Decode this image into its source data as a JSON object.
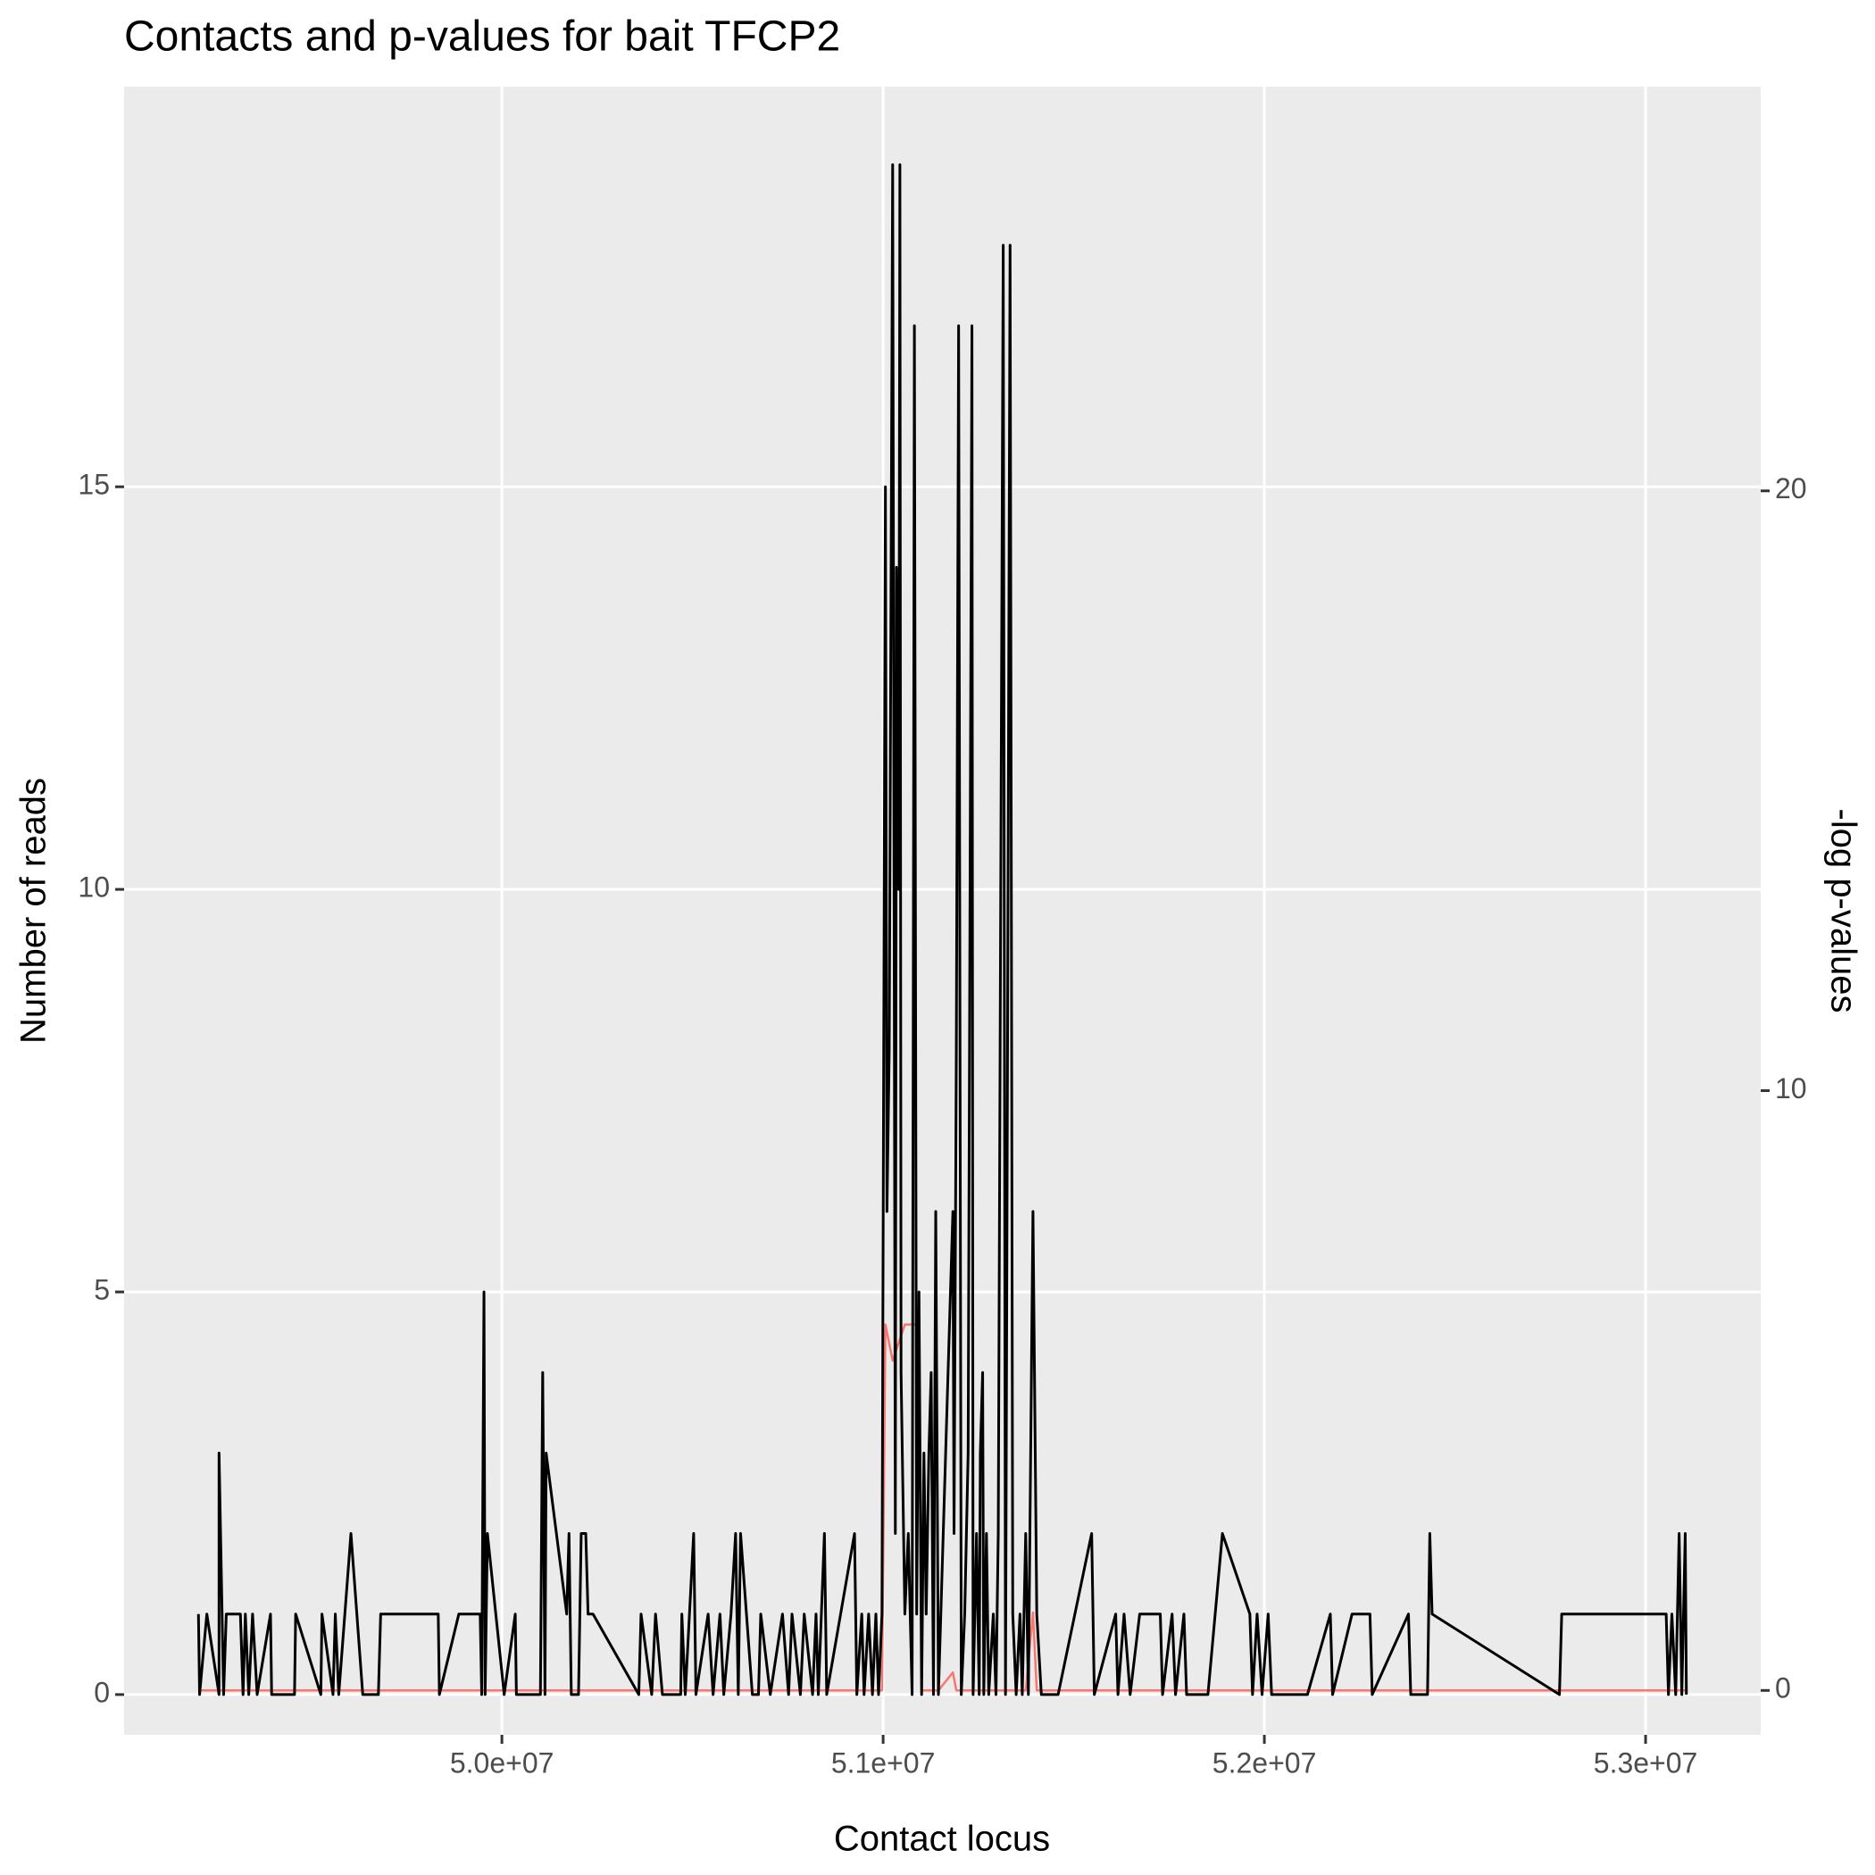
{
  "chart_data": {
    "type": "line",
    "title": "Contacts and p-values for bait TFCP2",
    "xlabel": "Contact locus",
    "ylabel": "Number of reads",
    "y2label": "-log p-values",
    "xlim": [
      49009000,
      53302000
    ],
    "xticks": [
      {
        "value": 50000000,
        "label": "5.0e+07"
      },
      {
        "value": 51000000,
        "label": "5.1e+07"
      },
      {
        "value": 52000000,
        "label": "5.2e+07"
      },
      {
        "value": 53000000,
        "label": "5.3e+07"
      }
    ],
    "ylim": [
      -0.5,
      19.97
    ],
    "yticks": [
      0,
      5,
      10,
      15
    ],
    "y2lim": [
      -0.74,
      26.74
    ],
    "y2ticks": [
      0,
      10,
      20
    ],
    "grid": true,
    "series": [
      {
        "color": "#000000",
        "x": [
          49204000,
          49207000,
          49226000,
          49258000,
          49258000,
          49270000,
          49277000,
          49314000,
          49321000,
          49327000,
          49336000,
          49346000,
          49358000,
          49393000,
          49396000,
          49456000,
          49459000,
          49525000,
          49528000,
          49557000,
          49563000,
          49572000,
          49604000,
          49635000,
          49676000,
          49682000,
          49833000,
          49836000,
          49887000,
          49943000,
          49947000,
          49953000,
          49956000,
          49962000,
          50006000,
          50035000,
          50038000,
          50101000,
          50107000,
          50113000,
          50116000,
          50170000,
          50176000,
          50182000,
          50201000,
          50208000,
          50220000,
          50226000,
          50239000,
          50359000,
          50365000,
          50393000,
          50403000,
          50421000,
          50469000,
          50472000,
          50481000,
          50503000,
          50509000,
          50541000,
          50554000,
          50572000,
          50582000,
          50601000,
          50613000,
          50620000,
          50626000,
          50657000,
          50673000,
          50679000,
          50704000,
          50736000,
          50752000,
          50761000,
          50783000,
          50793000,
          50815000,
          50824000,
          50830000,
          50846000,
          50852000,
          50925000,
          50931000,
          50944000,
          50950000,
          50962000,
          50972000,
          50981000,
          50988000,
          50997000,
          51006000,
          51010000,
          51016000,
          51025000,
          51032000,
          51035000,
          51041000,
          51044000,
          51047000,
          51057000,
          51066000,
          51076000,
          51082000,
          51088000,
          51094000,
          51101000,
          51107000,
          51113000,
          51120000,
          51126000,
          51132000,
          51138000,
          51145000,
          51183000,
          51186000,
          51192000,
          51198000,
          51205000,
          51214000,
          51223000,
          51233000,
          51236000,
          51245000,
          51252000,
          51255000,
          51261000,
          51264000,
          51271000,
          51277000,
          51289000,
          51296000,
          51302000,
          51315000,
          51321000,
          51333000,
          51340000,
          51349000,
          51359000,
          51365000,
          51374000,
          51381000,
          51393000,
          51403000,
          51415000,
          51459000,
          51547000,
          51554000,
          51610000,
          51616000,
          51632000,
          51648000,
          51673000,
          51727000,
          51733000,
          51758000,
          51767000,
          51789000,
          51796000,
          51852000,
          51890000,
          51962000,
          51969000,
          51981000,
          51994000,
          52010000,
          52019000,
          52113000,
          52173000,
          52179000,
          52230000,
          52277000,
          52283000,
          52378000,
          52384000,
          52428000,
          52434000,
          52440000,
          52774000,
          52780000,
          53054000,
          53060000,
          53069000,
          53079000,
          53088000,
          53095000,
          53104000,
          53107000
        ],
        "values": [
          1,
          0,
          1,
          0,
          3,
          0,
          1,
          1,
          0,
          1,
          0,
          1,
          0,
          1,
          0,
          0,
          1,
          0,
          1,
          0,
          1,
          0,
          2,
          0,
          0,
          1,
          1,
          0,
          1,
          1,
          0,
          5,
          0,
          2,
          0,
          1,
          0,
          0,
          4,
          0,
          3,
          1,
          2,
          0,
          0,
          2,
          2,
          1,
          1,
          0,
          1,
          0,
          1,
          0,
          0,
          1,
          0,
          2,
          0,
          1,
          0,
          1,
          0,
          1,
          2,
          0,
          2,
          0,
          0,
          1,
          0,
          1,
          0,
          1,
          0,
          1,
          0,
          1,
          0,
          2,
          0,
          2,
          0,
          1,
          0,
          1,
          0,
          1,
          0,
          1,
          15,
          6,
          8,
          19,
          2,
          14,
          10,
          19,
          4,
          1,
          2,
          0,
          17,
          1,
          5,
          0,
          3,
          1,
          3,
          4,
          0,
          6,
          0,
          6,
          2,
          8,
          17,
          0,
          1,
          3,
          17,
          0,
          2,
          0,
          3,
          4,
          0,
          2,
          0,
          1,
          0,
          2,
          18,
          0,
          18,
          1,
          0,
          1,
          0,
          2,
          0,
          6,
          1,
          0,
          0,
          2,
          0,
          1,
          0,
          1,
          0,
          1,
          1,
          0,
          1,
          0,
          1,
          0,
          0,
          2,
          1,
          0,
          1,
          0,
          1,
          0,
          0,
          1,
          0,
          1,
          1,
          0,
          1,
          0,
          0,
          2,
          1,
          0,
          1,
          1,
          0,
          1,
          0,
          2,
          0,
          2,
          0
        ]
      },
      {
        "color": "#F8766D",
        "axis": "y2",
        "x": [
          49204000,
          50997000,
          51006000,
          51025000,
          51057000,
          51094000,
          51101000,
          51145000,
          51183000,
          51192000,
          51374000,
          51393000,
          51403000,
          53107000
        ],
        "values": [
          0,
          0,
          6.1,
          5.5,
          6.1,
          6.1,
          0,
          0,
          0.3,
          0,
          0,
          1.3,
          0,
          0
        ]
      }
    ]
  }
}
